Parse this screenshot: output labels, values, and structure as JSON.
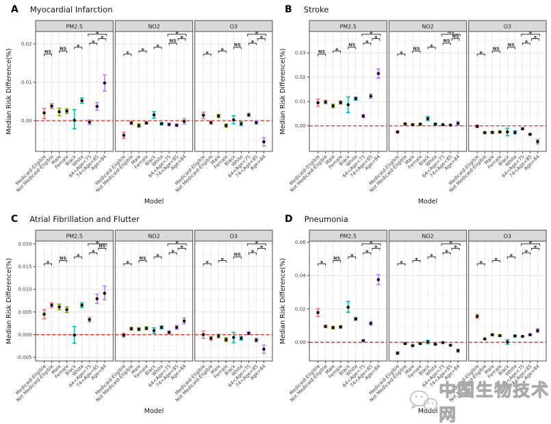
{
  "figure": {
    "ylabel": "Median Risk Difference(%)",
    "xlabel": "Model",
    "facet_labels": [
      "PM2.5",
      "NO2",
      "O3"
    ],
    "categories": [
      "Medicaid-Eligible",
      "Not Medicaid-Eligible",
      "Male",
      "Female",
      "Black",
      "White",
      "64<Age<75",
      "74<Age<85",
      "Age>84"
    ],
    "group_colors": [
      "#F8766D",
      "#F8766D",
      "#7CAE00",
      "#7CAE00",
      "#00BFC4",
      "#00BFC4",
      "#C77CFF",
      "#C77CFF",
      "#C77CFF"
    ],
    "zero_line_color": "#e8241f",
    "point_color": "#111111",
    "strip_fill": "#d9d9d9",
    "strip_border": "#4a4a4a",
    "grid_major": "#e3e3e3",
    "grid_minor": "#f0f0f0",
    "grid_vertical": "#e9e9e9",
    "axis_text_color": "#3d3d3d",
    "bracket_color": "#2b2b2b",
    "watermark": "中国生物技术网"
  },
  "chart_data": [
    {
      "type": "scatter",
      "panel": "A",
      "title": "Myocardial Infarction",
      "ylim": [
        -0.008,
        0.0232
      ],
      "yticks": [
        0,
        0.01,
        0.02
      ],
      "ytick_labels": [
        "0.00",
        "0.01",
        "0.02"
      ],
      "facets": [
        {
          "name": "PM2.5",
          "v": [
            0.002,
            0.0038,
            0.0023,
            0.0025,
            0.0001,
            0.0052,
            -0.0004,
            0.0037,
            0.0098
          ],
          "lo": [
            0.0005,
            0.0032,
            0.0013,
            0.0019,
            -0.0021,
            0.0045,
            -0.001,
            0.0027,
            0.0077
          ],
          "hi": [
            0.0032,
            0.0044,
            0.0032,
            0.0031,
            0.0029,
            0.0059,
            0.0002,
            0.0047,
            0.0119
          ],
          "sig": {
            "pairs": [
              "NS",
              "NS",
              "*"
            ],
            "age_left": "*",
            "age_top": "*",
            "age_right": "*"
          }
        },
        {
          "name": "NO2",
          "v": [
            -0.0038,
            -0.0006,
            -0.0013,
            -0.0006,
            0.0015,
            -0.0008,
            -0.001,
            -0.0012,
            -0.0002
          ],
          "lo": [
            -0.0046,
            -0.001,
            -0.0017,
            -0.0009,
            0.0007,
            -0.0011,
            -0.0013,
            -0.0015,
            -0.0009
          ],
          "hi": [
            -0.003,
            -0.0002,
            -0.0008,
            -0.0003,
            0.0023,
            -0.0005,
            -0.0007,
            -0.0009,
            0.0005
          ],
          "sig": {
            "pairs": [
              "*",
              "*",
              "*"
            ],
            "age_left": "NS",
            "age_top": "*",
            "age_right": "*"
          }
        },
        {
          "name": "O3",
          "v": [
            0.0014,
            -0.0005,
            0.0012,
            -0.0013,
            0.0002,
            -0.0008,
            0.0015,
            -0.0005,
            -0.0055
          ],
          "lo": [
            0.0005,
            -0.0009,
            0.0008,
            -0.0017,
            -0.0008,
            -0.0013,
            0.0011,
            -0.0009,
            -0.0066
          ],
          "hi": [
            0.0022,
            -0.0001,
            0.0016,
            -0.0009,
            0.0013,
            -0.0003,
            0.0019,
            -0.0001,
            -0.0044
          ],
          "sig": {
            "pairs": [
              "*",
              "*",
              "NS"
            ],
            "age_left": "*",
            "age_top": "*",
            "age_right": "*"
          }
        }
      ]
    },
    {
      "type": "scatter",
      "panel": "B",
      "title": "Stroke",
      "ylim": [
        -0.0105,
        0.0388
      ],
      "yticks": [
        0,
        0.01,
        0.02,
        0.03
      ],
      "ytick_labels": [
        "0.00",
        "0.01",
        "0.02",
        "0.03"
      ],
      "facets": [
        {
          "name": "PM2.5",
          "v": [
            0.0095,
            0.0098,
            0.0082,
            0.0096,
            0.0087,
            0.0112,
            0.004,
            0.0122,
            0.0215
          ],
          "lo": [
            0.008,
            0.0091,
            0.0075,
            0.009,
            0.0055,
            0.0106,
            0.0034,
            0.0113,
            0.0196
          ],
          "hi": [
            0.011,
            0.0105,
            0.0089,
            0.0102,
            0.0119,
            0.0118,
            0.0046,
            0.0131,
            0.0234
          ],
          "sig": {
            "pairs": [
              "NS",
              "*",
              "NS"
            ],
            "age_left": "*",
            "age_top": "*",
            "age_right": "*"
          }
        },
        {
          "name": "NO2",
          "v": [
            -0.0025,
            0.0008,
            0.0005,
            0.0007,
            0.003,
            0.0007,
            0.0005,
            0.0003,
            0.001
          ],
          "lo": [
            -0.0029,
            0.0004,
            0.0002,
            0.0004,
            0.0022,
            0.0003,
            0.0002,
            0.0,
            0.0003
          ],
          "hi": [
            -0.0021,
            0.0012,
            0.0008,
            0.001,
            0.0038,
            0.0011,
            0.0008,
            0.0006,
            0.0018
          ],
          "sig": {
            "pairs": [
              "*",
              "NS",
              "*"
            ],
            "age_left": "NS",
            "age_top": "NS",
            "age_right": "NS"
          }
        },
        {
          "name": "O3",
          "v": [
            -0.0002,
            -0.0028,
            -0.0027,
            -0.0025,
            -0.0025,
            -0.0027,
            -0.0012,
            -0.0035,
            -0.0065
          ],
          "lo": [
            -0.0007,
            -0.0032,
            -0.0031,
            -0.0029,
            -0.004,
            -0.0033,
            -0.0016,
            -0.0039,
            -0.0074
          ],
          "hi": [
            0.0003,
            -0.0024,
            -0.0023,
            -0.0021,
            -0.001,
            -0.0021,
            -0.0008,
            -0.0031,
            -0.0056
          ],
          "sig": {
            "pairs": [
              "*",
              "NS",
              "NS"
            ],
            "age_left": "*",
            "age_top": "*",
            "age_right": "*"
          }
        }
      ]
    },
    {
      "type": "scatter",
      "panel": "C",
      "title": "Atrial Fibrillation and Flutter",
      "ylim": [
        -0.0058,
        0.0206
      ],
      "yticks": [
        -0.005,
        0,
        0.005,
        0.01,
        0.015,
        0.02
      ],
      "ytick_labels": [
        "-0.005",
        "0.000",
        "0.005",
        "0.010",
        "0.015",
        "0.020"
      ],
      "facets": [
        {
          "name": "PM2.5",
          "v": [
            0.0045,
            0.0065,
            0.0061,
            0.0055,
            -0.0001,
            0.0065,
            0.0033,
            0.0079,
            0.0091
          ],
          "lo": [
            0.0035,
            0.006,
            0.0055,
            0.0049,
            -0.0019,
            0.006,
            0.0028,
            0.0069,
            0.0077
          ],
          "hi": [
            0.0055,
            0.007,
            0.0067,
            0.0061,
            0.0018,
            0.007,
            0.0038,
            0.0089,
            0.0107
          ],
          "sig": {
            "pairs": [
              "*",
              "NS",
              "*"
            ],
            "age_left": "*",
            "age_top": "*",
            "age_right": "NS"
          }
        },
        {
          "name": "NO2",
          "v": [
            -0.0001,
            0.0013,
            0.0012,
            0.0014,
            0.0009,
            0.0016,
            0.0005,
            0.0016,
            0.003
          ],
          "lo": [
            -0.0005,
            0.001,
            0.0009,
            0.0011,
            0.0003,
            0.0013,
            0.0002,
            0.0012,
            0.0024
          ],
          "hi": [
            0.0003,
            0.0016,
            0.0015,
            0.0017,
            0.0015,
            0.0019,
            0.0008,
            0.002,
            0.0037
          ],
          "sig": {
            "pairs": [
              "*",
              "NS",
              "*"
            ],
            "age_left": "*",
            "age_top": "*",
            "age_right": "*"
          }
        },
        {
          "name": "O3",
          "v": [
            0.0,
            -0.0008,
            -0.0003,
            -0.0011,
            -0.0006,
            -0.0008,
            0.0003,
            -0.0012,
            -0.0032
          ],
          "lo": [
            -0.0008,
            -0.0012,
            -0.0007,
            -0.0015,
            -0.0018,
            -0.0012,
            0.0,
            -0.0016,
            -0.0041
          ],
          "hi": [
            0.0008,
            -0.0004,
            0.0001,
            -0.0007,
            0.0005,
            -0.0004,
            0.0006,
            -0.0008,
            -0.0023
          ],
          "sig": {
            "pairs": [
              "*",
              "*",
              "NS"
            ],
            "age_left": "*",
            "age_top": "*",
            "age_right": "*"
          }
        }
      ]
    },
    {
      "type": "scatter",
      "panel": "D",
      "title": "Pneumonia",
      "ylim": [
        -0.0112,
        0.0606
      ],
      "yticks": [
        0,
        0.02,
        0.04,
        0.06
      ],
      "ytick_labels": [
        "0.00",
        "0.02",
        "0.04",
        "0.06"
      ],
      "facets": [
        {
          "name": "PM2.5",
          "v": [
            0.0178,
            0.0095,
            0.0088,
            0.0092,
            0.021,
            0.014,
            0.001,
            0.0113,
            0.0375
          ],
          "lo": [
            0.0155,
            0.0088,
            0.0081,
            0.0085,
            0.018,
            0.0132,
            0.0005,
            0.0103,
            0.0345
          ],
          "hi": [
            0.0201,
            0.0102,
            0.0095,
            0.0099,
            0.0245,
            0.0148,
            0.0015,
            0.0124,
            0.0405
          ],
          "sig": {
            "pairs": [
              "*",
              "NS",
              "*"
            ],
            "age_left": "*",
            "age_top": "*",
            "age_right": "*"
          }
        },
        {
          "name": "NO2",
          "v": [
            -0.0065,
            -0.0008,
            -0.002,
            -0.0008,
            0.0002,
            -0.0012,
            -0.0002,
            -0.0018,
            -0.005
          ],
          "lo": [
            -0.0072,
            -0.0012,
            -0.0024,
            -0.0012,
            -0.0008,
            -0.0016,
            -0.0005,
            -0.0022,
            -0.0059
          ],
          "hi": [
            -0.0058,
            -0.0004,
            -0.0016,
            -0.0004,
            0.0012,
            -0.0008,
            0.0001,
            -0.0014,
            -0.0041
          ],
          "sig": {
            "pairs": [
              "*",
              "*",
              "*"
            ],
            "age_left": "*",
            "age_top": "*",
            "age_right": "*"
          }
        },
        {
          "name": "O3",
          "v": [
            0.0155,
            0.002,
            0.0045,
            0.004,
            0.0002,
            0.0038,
            0.0035,
            0.0045,
            0.007
          ],
          "lo": [
            0.0144,
            0.0016,
            0.004,
            0.0035,
            -0.0012,
            0.0033,
            0.0031,
            0.004,
            0.006
          ],
          "hi": [
            0.0166,
            0.0024,
            0.005,
            0.0045,
            0.0016,
            0.0043,
            0.0039,
            0.005,
            0.0081
          ],
          "sig": {
            "pairs": [
              "*",
              "*",
              "*"
            ],
            "age_left": "*",
            "age_top": "*",
            "age_right": "*"
          }
        }
      ]
    }
  ]
}
